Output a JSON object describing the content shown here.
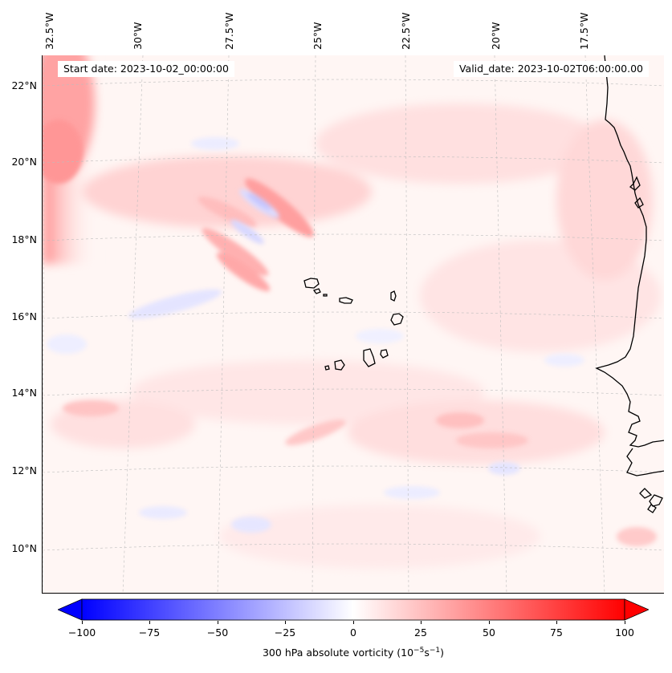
{
  "map": {
    "title_start": "Start date: 2023-10-02_00:00:00",
    "title_valid": "Valid_date: 2023-10-02T06:00:00.00",
    "lon_labels": [
      "32.5°W",
      "30°W",
      "27.5°W",
      "25°W",
      "22.5°W",
      "20°W",
      "17.5°W"
    ],
    "lat_labels": [
      "22°N",
      "20°N",
      "18°N",
      "16°N",
      "14°N",
      "12°N",
      "10°N"
    ],
    "variable": "300 hPa absolute vorticity",
    "units_prefix": "(10",
    "units_exp1": "−5",
    "units_mid": "s",
    "units_exp2": "−1",
    "units_suffix": ")",
    "colorbar": {
      "min": -100,
      "max": 100,
      "ticks": [
        "−100",
        "−75",
        "−50",
        "−25",
        "0",
        "25",
        "50",
        "75",
        "100"
      ],
      "low_color": "#0000ff",
      "high_color": "#ff0000"
    },
    "features": [
      "West African coastline",
      "Cape Verde islands"
    ]
  }
}
